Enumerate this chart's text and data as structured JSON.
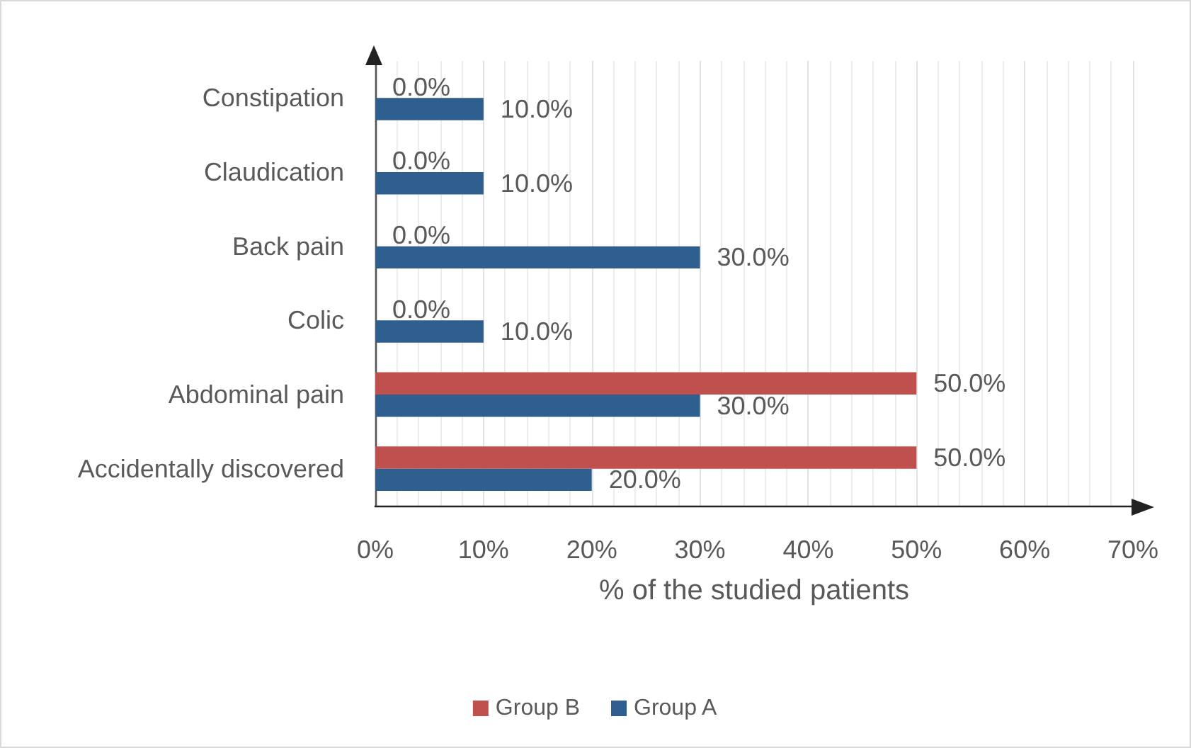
{
  "chart_data": {
    "type": "bar",
    "orientation": "horizontal",
    "xlabel": "% of the studied patients",
    "categories": [
      "Constipation",
      "Claudication",
      "Back pain",
      "Colic",
      "Abdominal pain",
      "Accidentally discovered"
    ],
    "series": [
      {
        "name": "Group B",
        "color": "#c0504d",
        "values": [
          0,
          0,
          0,
          0,
          50,
          50
        ],
        "value_labels": [
          "0.0%",
          "0.0%",
          "0.0%",
          "0.0%",
          "50.0%",
          "50.0%"
        ]
      },
      {
        "name": "Group A",
        "color": "#2f5f8f",
        "values": [
          10,
          10,
          30,
          10,
          30,
          20
        ],
        "value_labels": [
          "10.0%",
          "10.0%",
          "30.0%",
          "10.0%",
          "30.0%",
          "20.0%"
        ]
      }
    ],
    "xlim": [
      0,
      70
    ],
    "xticks": [
      {
        "value": 0,
        "label": "0%"
      },
      {
        "value": 10,
        "label": "10%"
      },
      {
        "value": 20,
        "label": "20%"
      },
      {
        "value": 30,
        "label": "30%"
      },
      {
        "value": 40,
        "label": "40%"
      },
      {
        "value": 50,
        "label": "50%"
      },
      {
        "value": 60,
        "label": "60%"
      },
      {
        "value": 70,
        "label": "70%"
      }
    ],
    "grid": "x",
    "legend": "bottom"
  }
}
